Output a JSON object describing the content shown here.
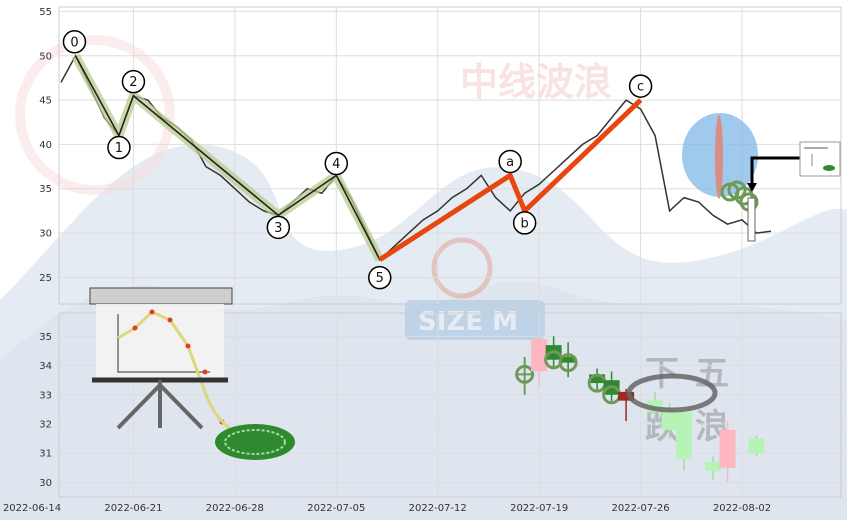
{
  "watermark": {
    "title": "中线波浪",
    "logo": "SIZE M",
    "bottom_chars": [
      "下",
      "跌",
      "五",
      "浪"
    ]
  },
  "colors": {
    "price_line": "#333333",
    "impulse": "#222222",
    "impulse_halo": "#b9cc8e",
    "correction": "#e8460f",
    "bull_candle": "#ffb6c1",
    "bear_candle": "#2f8a2f",
    "light_bear": "#b7f2b7",
    "dark_red": "#9a2b1e",
    "ellipse_fill": "#7fb8e8"
  },
  "chart_data": [
    {
      "type": "line",
      "title": "",
      "xlabel": "",
      "ylabel": "",
      "ylim": [
        22,
        55.5
      ],
      "yticks": [
        25,
        30,
        35,
        40,
        45,
        50,
        55
      ],
      "x_dates": [
        "2022-06-14",
        "2022-06-21",
        "2022-06-28",
        "2022-07-05",
        "2022-07-12",
        "2022-07-19",
        "2022-07-26",
        "2022-08-02"
      ],
      "series": [
        {
          "x": [
            "2022-06-16",
            "2022-06-17",
            "2022-06-18",
            "2022-06-19",
            "2022-06-20",
            "2022-06-21",
            "2022-06-22",
            "2022-06-23",
            "2022-06-24",
            "2022-06-25",
            "2022-06-26",
            "2022-06-27",
            "2022-06-28",
            "2022-06-29",
            "2022-06-30",
            "2022-07-01",
            "2022-07-02",
            "2022-07-03",
            "2022-07-04",
            "2022-07-05",
            "2022-07-06",
            "2022-07-07",
            "2022-07-08",
            "2022-07-09",
            "2022-07-10",
            "2022-07-11",
            "2022-07-12",
            "2022-07-13",
            "2022-07-14",
            "2022-07-15",
            "2022-07-16",
            "2022-07-17",
            "2022-07-18",
            "2022-07-19",
            "2022-07-20",
            "2022-07-21",
            "2022-07-22",
            "2022-07-23",
            "2022-07-24",
            "2022-07-25",
            "2022-07-26",
            "2022-07-27",
            "2022-07-28",
            "2022-07-29",
            "2022-07-30",
            "2022-07-31",
            "2022-08-01",
            "2022-08-02",
            "2022-08-03",
            "2022-08-04"
          ],
          "y": [
            47,
            50,
            46.5,
            43,
            41,
            45.5,
            45,
            43,
            42,
            40.5,
            37.5,
            36.5,
            35,
            33.5,
            32.5,
            32,
            33.5,
            35,
            34.5,
            36.5,
            34,
            30.5,
            27,
            28.5,
            30,
            31.5,
            32.5,
            34,
            35,
            36.5,
            34,
            32.5,
            34.5,
            35.5,
            37,
            38.5,
            40,
            41,
            43,
            45,
            44,
            41,
            32.5,
            34,
            33.5,
            32,
            31,
            31.5,
            30,
            30.2
          ]
        }
      ],
      "waves": {
        "impulse": [
          {
            "label": "0",
            "x": "2022-06-17",
            "y": 50
          },
          {
            "label": "1",
            "x": "2022-06-20",
            "y": 41
          },
          {
            "label": "2",
            "x": "2022-06-21",
            "y": 45.5
          },
          {
            "label": "3",
            "x": "2022-07-01",
            "y": 32
          },
          {
            "label": "4",
            "x": "2022-07-05",
            "y": 36.5
          },
          {
            "label": "5",
            "x": "2022-07-08",
            "y": 27
          }
        ],
        "correction": [
          {
            "label": "5",
            "x": "2022-07-08",
            "y": 27
          },
          {
            "label": "a",
            "x": "2022-07-17",
            "y": 36.5
          },
          {
            "label": "b",
            "x": "2022-07-18",
            "y": 32.5
          },
          {
            "label": "c",
            "x": "2022-07-26",
            "y": 45
          }
        ]
      }
    },
    {
      "type": "candlestick",
      "title": "",
      "ylim": [
        29.5,
        35.8
      ],
      "yticks": [
        30,
        31,
        32,
        33,
        34,
        35
      ],
      "xticks": [
        "2022-06-14",
        "2022-06-21",
        "2022-06-28",
        "2022-07-05",
        "2022-07-12",
        "2022-07-19",
        "2022-07-26",
        "2022-08-02"
      ],
      "candles": [
        {
          "x": "2022-07-18",
          "open": 33.7,
          "close": 33.7,
          "high": 34.3,
          "low": 33.0,
          "kind": "marker"
        },
        {
          "x": "2022-07-19",
          "open": 33.8,
          "close": 34.9,
          "high": 35.0,
          "low": 33.3,
          "kind": "bull"
        },
        {
          "x": "2022-07-20",
          "open": 34.7,
          "close": 34.2,
          "high": 35.0,
          "low": 33.9,
          "kind": "bear"
        },
        {
          "x": "2022-07-21",
          "open": 34.3,
          "close": 34.1,
          "high": 34.8,
          "low": 33.6,
          "kind": "bear"
        },
        {
          "x": "2022-07-23",
          "open": 33.7,
          "close": 33.4,
          "high": 33.9,
          "low": 33.1,
          "kind": "bear"
        },
        {
          "x": "2022-07-24",
          "open": 33.5,
          "close": 33.0,
          "high": 33.8,
          "low": 32.7,
          "kind": "bear"
        },
        {
          "x": "2022-07-25",
          "open": 33.1,
          "close": 32.8,
          "high": 33.2,
          "low": 32.1,
          "kind": "dark"
        },
        {
          "x": "2022-07-27",
          "open": 32.8,
          "close": 32.4,
          "high": 33.1,
          "low": 32.1,
          "kind": "light"
        },
        {
          "x": "2022-07-28",
          "open": 32.5,
          "close": 31.8,
          "high": 32.7,
          "low": 31.5,
          "kind": "light"
        },
        {
          "x": "2022-07-29",
          "open": 32.4,
          "close": 30.8,
          "high": 32.4,
          "low": 30.4,
          "kind": "light"
        },
        {
          "x": "2022-07-31",
          "open": 30.7,
          "close": 30.4,
          "high": 30.9,
          "low": 30.1,
          "kind": "light"
        },
        {
          "x": "2022-08-01",
          "open": 30.5,
          "close": 31.8,
          "high": 32.1,
          "low": 30.0,
          "kind": "bull"
        },
        {
          "x": "2022-08-03",
          "open": 31.5,
          "close": 31.0,
          "high": 31.6,
          "low": 30.9,
          "kind": "light"
        }
      ]
    }
  ]
}
